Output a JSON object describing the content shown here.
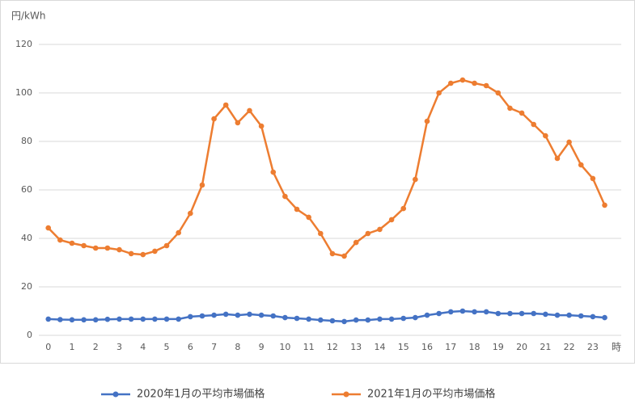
{
  "chart_data": {
    "type": "line",
    "y_unit_label": "円/kWh",
    "x_unit_label": "時",
    "x": [
      0,
      0.5,
      1,
      1.5,
      2,
      2.5,
      3,
      3.5,
      4,
      4.5,
      5,
      5.5,
      6,
      6.5,
      7,
      7.5,
      8,
      8.5,
      9,
      9.5,
      10,
      10.5,
      11,
      11.5,
      12,
      12.5,
      13,
      13.5,
      14,
      14.5,
      15,
      15.5,
      16,
      16.5,
      17,
      17.5,
      18,
      18.5,
      19,
      19.5,
      20,
      20.5,
      21,
      21.5,
      22,
      22.5,
      23,
      23.5
    ],
    "series": [
      {
        "name": "2020年1月の平均市場価格",
        "color": "#4472c4",
        "values": [
          6.7,
          6.5,
          6.4,
          6.4,
          6.4,
          6.6,
          6.7,
          6.7,
          6.7,
          6.7,
          6.7,
          6.7,
          7.7,
          8.0,
          8.3,
          8.7,
          8.3,
          8.7,
          8.3,
          8.0,
          7.3,
          7.0,
          6.7,
          6.3,
          6.0,
          5.7,
          6.3,
          6.3,
          6.7,
          6.7,
          7.0,
          7.3,
          8.3,
          9.0,
          9.7,
          10.0,
          9.7,
          9.7,
          9.0,
          9.0,
          9.0,
          9.0,
          8.7,
          8.3,
          8.3,
          8.0,
          7.7,
          7.3
        ]
      },
      {
        "name": "2021年1月の平均市場価格",
        "color": "#ed7d31",
        "values": [
          44.3,
          39.3,
          38,
          37,
          36,
          36,
          35.3,
          33.7,
          33.3,
          34.7,
          37,
          42.3,
          50.3,
          62,
          89.3,
          95,
          87.7,
          92.7,
          86.3,
          67.3,
          57.3,
          52,
          48.7,
          42,
          33.7,
          32.7,
          38.3,
          42,
          43.7,
          47.7,
          52.3,
          64.3,
          88.3,
          100,
          104,
          105.3,
          104,
          103,
          100,
          93.7,
          91.7,
          87,
          82.3,
          73,
          79.7,
          70.3,
          64.7,
          53.7
        ]
      }
    ],
    "xlim": [
      -0.4,
      24.2
    ],
    "xticks": [
      0,
      1,
      2,
      3,
      4,
      5,
      6,
      7,
      8,
      9,
      10,
      11,
      12,
      13,
      14,
      15,
      16,
      17,
      18,
      19,
      20,
      21,
      22,
      23
    ],
    "ylim": [
      0,
      120
    ],
    "yticks": [
      0,
      20,
      40,
      60,
      80,
      100,
      120
    ],
    "grid": true
  }
}
